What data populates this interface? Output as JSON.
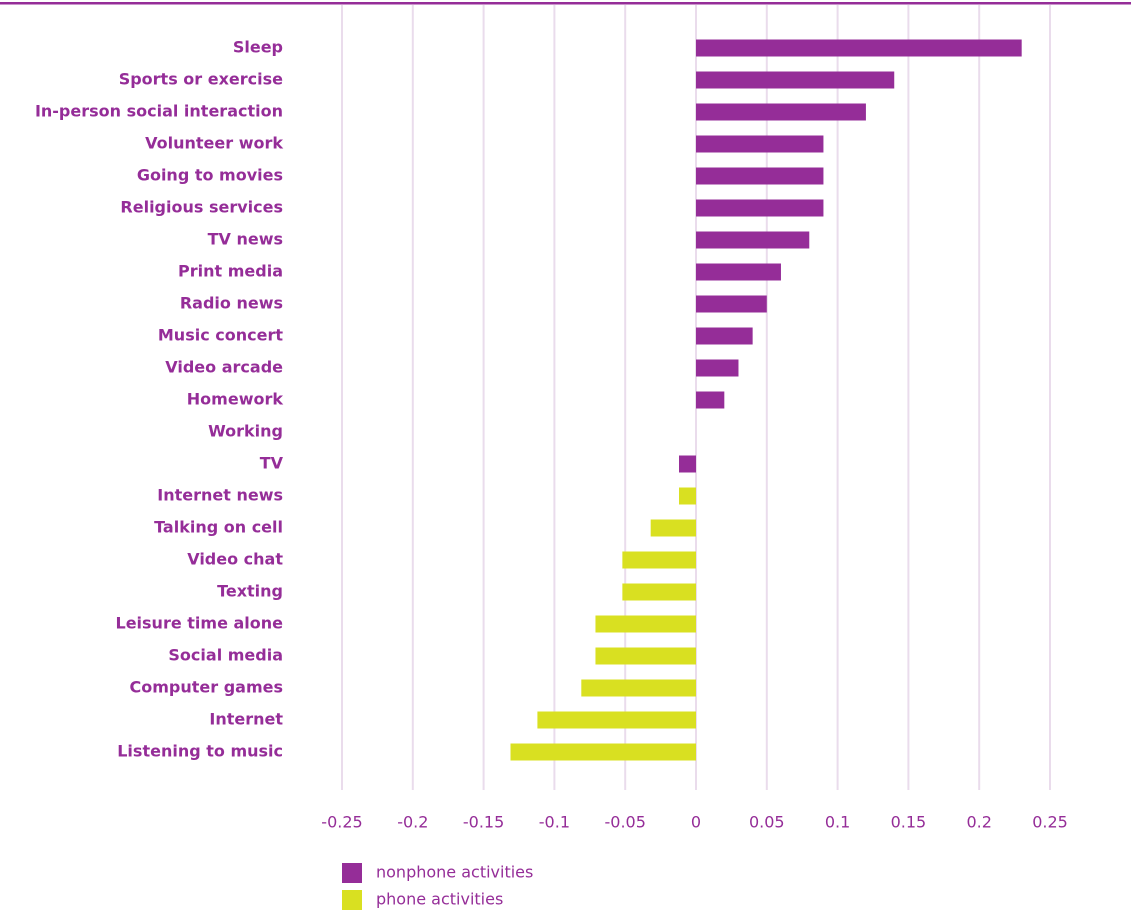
{
  "chart_data": {
    "type": "bar",
    "orientation": "horizontal",
    "categories": [
      "Sleep",
      "Sports or exercise",
      "In-person social interaction",
      "Volunteer work",
      "Going to movies",
      "Religious services",
      "TV news",
      "Print media",
      "Radio news",
      "Music concert",
      "Video arcade",
      "Homework",
      "Working",
      "TV",
      "Internet news",
      "Talking on cell",
      "Video chat",
      "Texting",
      "Leisure time alone",
      "Social media",
      "Computer games",
      "Internet",
      "Listening to music"
    ],
    "series": [
      {
        "name": "nonphone activities",
        "color": "#952d98",
        "values": [
          0.23,
          0.14,
          0.12,
          0.09,
          0.09,
          0.09,
          0.08,
          0.06,
          0.05,
          0.04,
          0.03,
          0.02,
          0,
          -0.012,
          null,
          null,
          null,
          null,
          null,
          null,
          null,
          null,
          null
        ]
      },
      {
        "name": "phone activities",
        "color": "#d9e021",
        "values": [
          null,
          null,
          null,
          null,
          null,
          null,
          null,
          null,
          null,
          null,
          null,
          null,
          null,
          null,
          -0.012,
          -0.032,
          -0.052,
          -0.052,
          -0.071,
          -0.071,
          -0.081,
          -0.112,
          -0.131
        ]
      }
    ],
    "xlim": [
      -0.25,
      0.25
    ],
    "xticks": [
      -0.25,
      -0.2,
      -0.15,
      -0.1,
      -0.05,
      0,
      0.05,
      0.1,
      0.15,
      0.2,
      0.25
    ],
    "grid": true
  }
}
